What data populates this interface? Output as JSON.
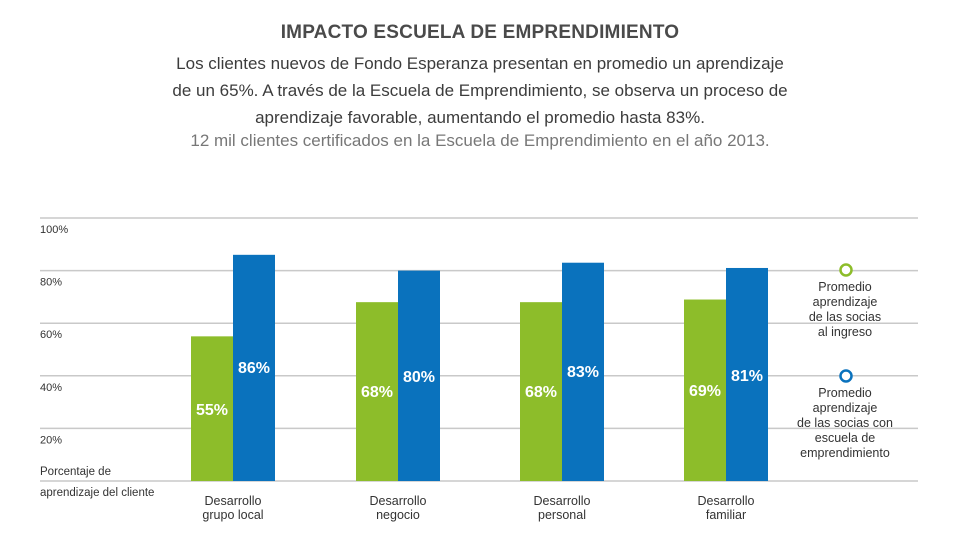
{
  "header": {
    "title": "IMPACTO ESCUELA DE EMPRENDIMIENTO",
    "description_lines": [
      "Los clientes nuevos de Fondo Esperanza presentan en promedio un aprendizaje",
      "de un 65%. A través de la Escuela de Emprendimiento, se observa un proceso de",
      "aprendizaje favorable, aumentando el promedio hasta 83%."
    ],
    "note": "12 mil clientes certificados en la Escuela de Emprendimiento en el año 2013."
  },
  "chart_data": {
    "type": "bar",
    "categories": [
      [
        "Desarrollo",
        "grupo local"
      ],
      [
        "Desarrollo",
        "negocio"
      ],
      [
        "Desarrollo",
        "personal"
      ],
      [
        "Desarrollo",
        "familiar"
      ]
    ],
    "series": [
      {
        "name": [
          "Promedio",
          "aprendizaje",
          "de las socias",
          "al ingreso"
        ],
        "values": [
          55,
          68,
          68,
          69
        ],
        "labels": [
          "55%",
          "68%",
          "68%",
          "69%"
        ],
        "color": "#8dbd2a"
      },
      {
        "name": [
          "Promedio",
          "aprendizaje",
          "de las socias con",
          "escuela de",
          "emprendimiento"
        ],
        "values": [
          86,
          80,
          83,
          81
        ],
        "labels": [
          "86%",
          "80%",
          "83%",
          "81%"
        ],
        "color": "#0a72bd"
      }
    ],
    "ylim": [
      0,
      100
    ],
    "yticks": [
      20,
      40,
      60,
      80,
      100
    ],
    "ytick_labels": [
      "20%",
      "40%",
      "60%",
      "80%",
      "100%"
    ],
    "ylabel": [
      "Porcentaje de",
      "aprendizaje del cliente"
    ],
    "grid": true,
    "legend_position": "right",
    "colors": {
      "grid": "#c9c9c9",
      "label_inside": "#ffffff",
      "label_outside": "#0a72bd",
      "text": "#333333"
    }
  }
}
